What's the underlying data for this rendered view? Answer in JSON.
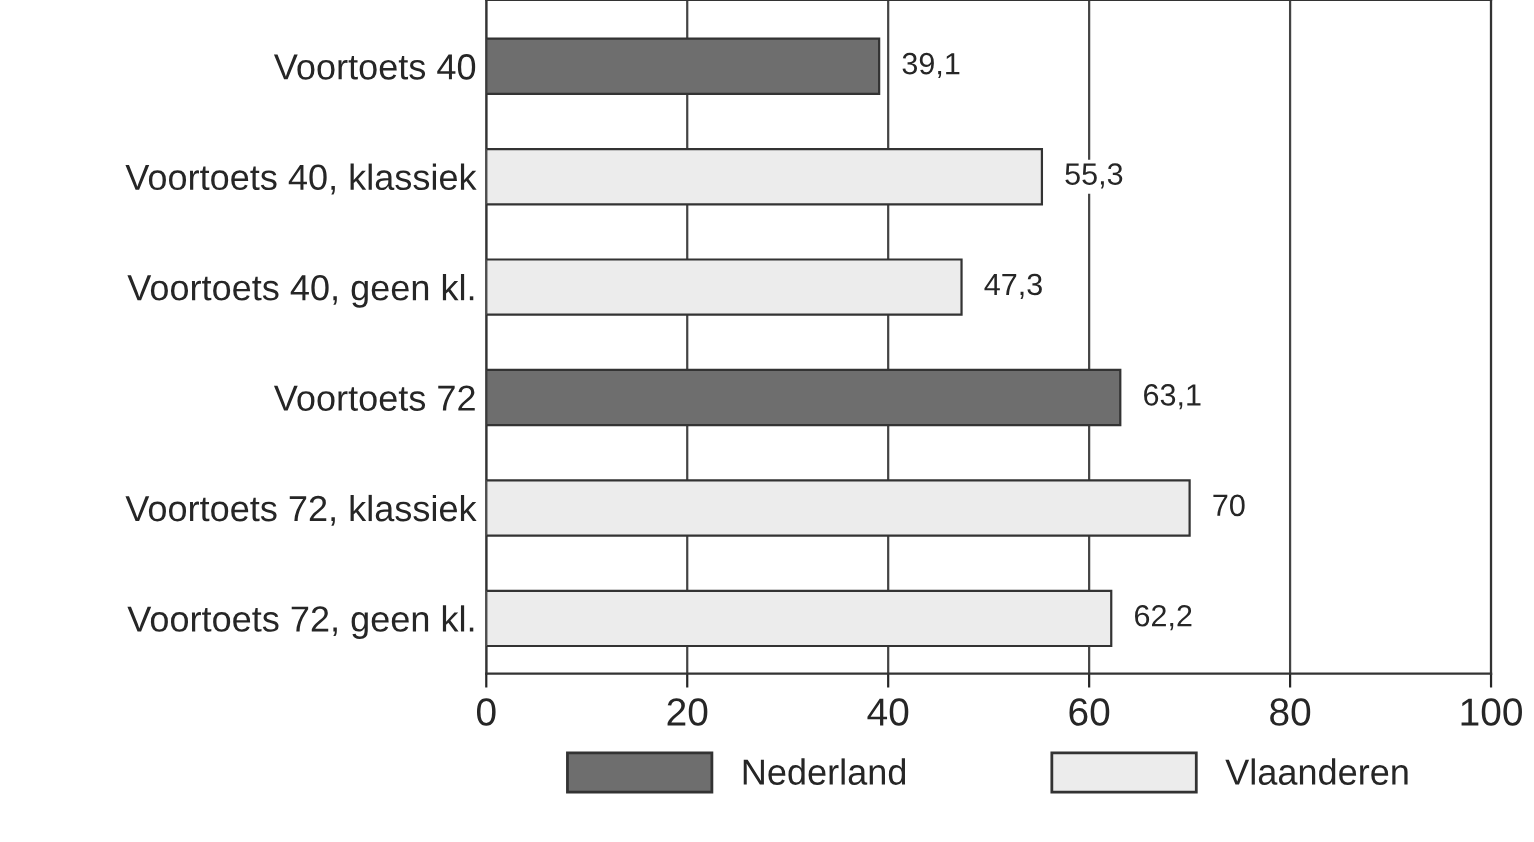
{
  "chart_data": {
    "type": "bar",
    "orientation": "horizontal",
    "categories": [
      "Voortoets 40",
      "Voortoets 40, klassiek",
      "Voortoets 40, geen kl.",
      "Voortoets 72",
      "Voortoets 72, klassiek",
      "Voortoets 72, geen kl."
    ],
    "series": [
      {
        "name": "Nederland",
        "color": "#6e6e6e",
        "values": [
          39.1,
          null,
          null,
          63.1,
          null,
          null
        ],
        "value_labels": [
          "39,1",
          null,
          null,
          "63,1",
          null,
          null
        ]
      },
      {
        "name": "Vlaanderen",
        "color": "#ececec",
        "values": [
          null,
          55.3,
          47.3,
          null,
          70,
          62.2
        ],
        "value_labels": [
          null,
          "55,3",
          "47,3",
          null,
          "70",
          "62,2"
        ]
      }
    ],
    "xlim": [
      0,
      100
    ],
    "xticks": [
      0,
      20,
      40,
      60,
      80,
      100
    ],
    "grid": "x",
    "legend": "bottom"
  }
}
